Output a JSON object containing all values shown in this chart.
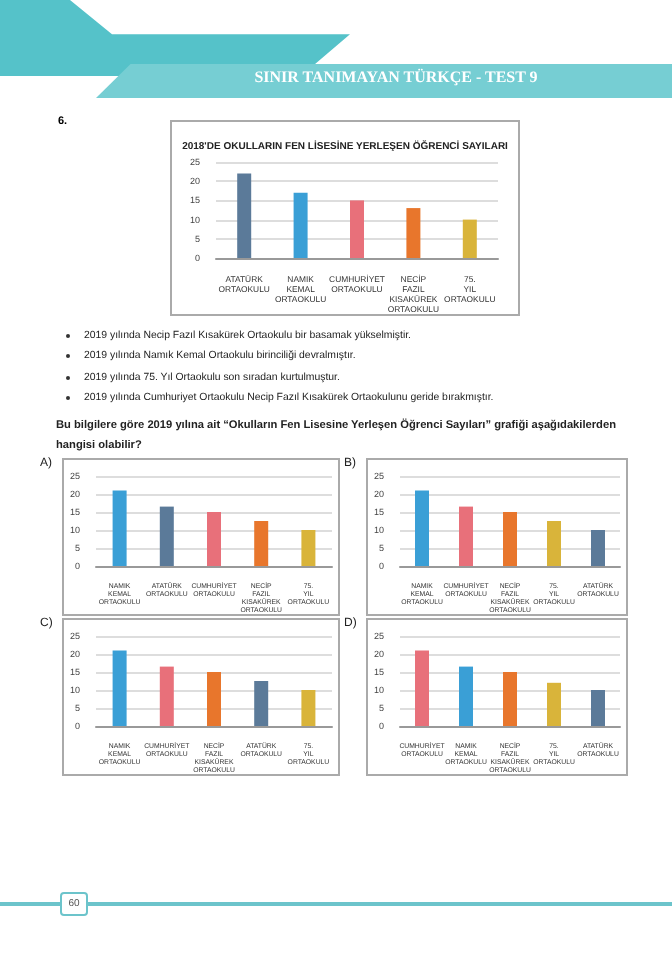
{
  "chart_data": [
    {
      "type": "other",
      "title": "SINIR TANIMAYAN TÜRKÇE - TEST 9",
      "annotations": [
        "6."
      ]
    },
    {
      "type": "bar",
      "title": "2018'DE OKULLARIN FEN LİSESİNE YERLEŞEN ÖĞRENCİ SAYILARI",
      "categories": [
        "ATATÜRK ORTAOKULU",
        "NAMIK KEMAL ORTAOKULU",
        "CUMHURİYET ORTAOKULU",
        "NECİP FAZIL KISAKÜREK ORTAOKULU",
        "75. YIL ORTAOKULU"
      ],
      "values": [
        22,
        17,
        15,
        13,
        10
      ],
      "colors": [
        "#5b7a99",
        "#3a9fd6",
        "#e8707a",
        "#e8762c",
        "#d9b43a"
      ],
      "ylim": [
        0,
        25
      ],
      "yticks": [
        0,
        5,
        10,
        15,
        20,
        25
      ],
      "grid": "y"
    },
    {
      "type": "other",
      "annotations": [
        "2019 yılında Necip Fazıl Kısakürek Ortaokulu bir basamak yükselmiştir.",
        "2019 yılında Namık Kemal Ortaokulu birinciliği devralmıştır.",
        "2019 yılında 75. Yıl Ortaokulu son sıradan kurtulmuştur.",
        "2019 yılında Cumhuriyet Ortaokulu Necip Fazıl Kısakürek Ortaokulunu geride bırakmıştır.",
        "Bu bilgilere göre 2019 yılına ait “Okulların Fen Lisesine Yerleşen Öğrenci Sayıları” grafiği aşağıdakilerden hangisi olabilir?"
      ]
    },
    {
      "type": "bar",
      "title": "A)",
      "categories": [
        "NAMIK KEMAL ORTAOKULU",
        "ATATÜRK ORTAOKULU",
        "CUMHURİYET ORTAOKULU",
        "NECİP FAZIL KISAKÜREK ORTAOKULU",
        "75. YIL ORTAOKULU"
      ],
      "values": [
        21,
        16.5,
        15,
        12.5,
        10
      ],
      "colors": [
        "#3a9fd6",
        "#5b7a99",
        "#e8707a",
        "#e8762c",
        "#d9b43a"
      ],
      "ylim": [
        0,
        25
      ],
      "yticks": [
        0,
        5,
        10,
        15,
        20,
        25
      ],
      "grid": "y"
    },
    {
      "type": "bar",
      "title": "B)",
      "categories": [
        "NAMIK KEMAL ORTAOKULU",
        "CUMHURİYET ORTAOKULU",
        "NECİP FAZIL KISAKÜREK ORTAOKULU",
        "75. YIL ORTAOKULU",
        "ATATÜRK ORTAOKULU"
      ],
      "values": [
        21,
        16.5,
        15,
        12.5,
        10
      ],
      "colors": [
        "#3a9fd6",
        "#e8707a",
        "#e8762c",
        "#d9b43a",
        "#5b7a99"
      ],
      "ylim": [
        0,
        25
      ],
      "yticks": [
        0,
        5,
        10,
        15,
        20,
        25
      ],
      "grid": "y"
    },
    {
      "type": "bar",
      "title": "C)",
      "categories": [
        "NAMIK KEMAL ORTAOKULU",
        "CUMHURİYET ORTAOKULU",
        "NECİP FAZIL KISAKÜREK ORTAOKULU",
        "ATATÜRK ORTAOKULU",
        "75. YIL ORTAOKULU"
      ],
      "values": [
        21,
        16.5,
        15,
        12.5,
        10
      ],
      "colors": [
        "#3a9fd6",
        "#e8707a",
        "#e8762c",
        "#5b7a99",
        "#d9b43a"
      ],
      "ylim": [
        0,
        25
      ],
      "yticks": [
        0,
        5,
        10,
        15,
        20,
        25
      ],
      "grid": "y"
    },
    {
      "type": "bar",
      "title": "D)",
      "categories": [
        "CUMHURİYET ORTAOKULU",
        "NAMIK KEMAL ORTAOKULU",
        "NECİP FAZIL KISAKÜREK ORTAOKULU",
        "75. YIL ORTAOKULU",
        "ATATÜRK ORTAOKULU"
      ],
      "values": [
        21,
        16.5,
        15,
        12,
        10
      ],
      "colors": [
        "#e8707a",
        "#3a9fd6",
        "#e8762c",
        "#d9b43a",
        "#5b7a99"
      ],
      "ylim": [
        0,
        25
      ],
      "yticks": [
        0,
        5,
        10,
        15,
        20,
        25
      ],
      "grid": "y"
    },
    {
      "type": "other",
      "annotations": [
        "60"
      ]
    }
  ]
}
